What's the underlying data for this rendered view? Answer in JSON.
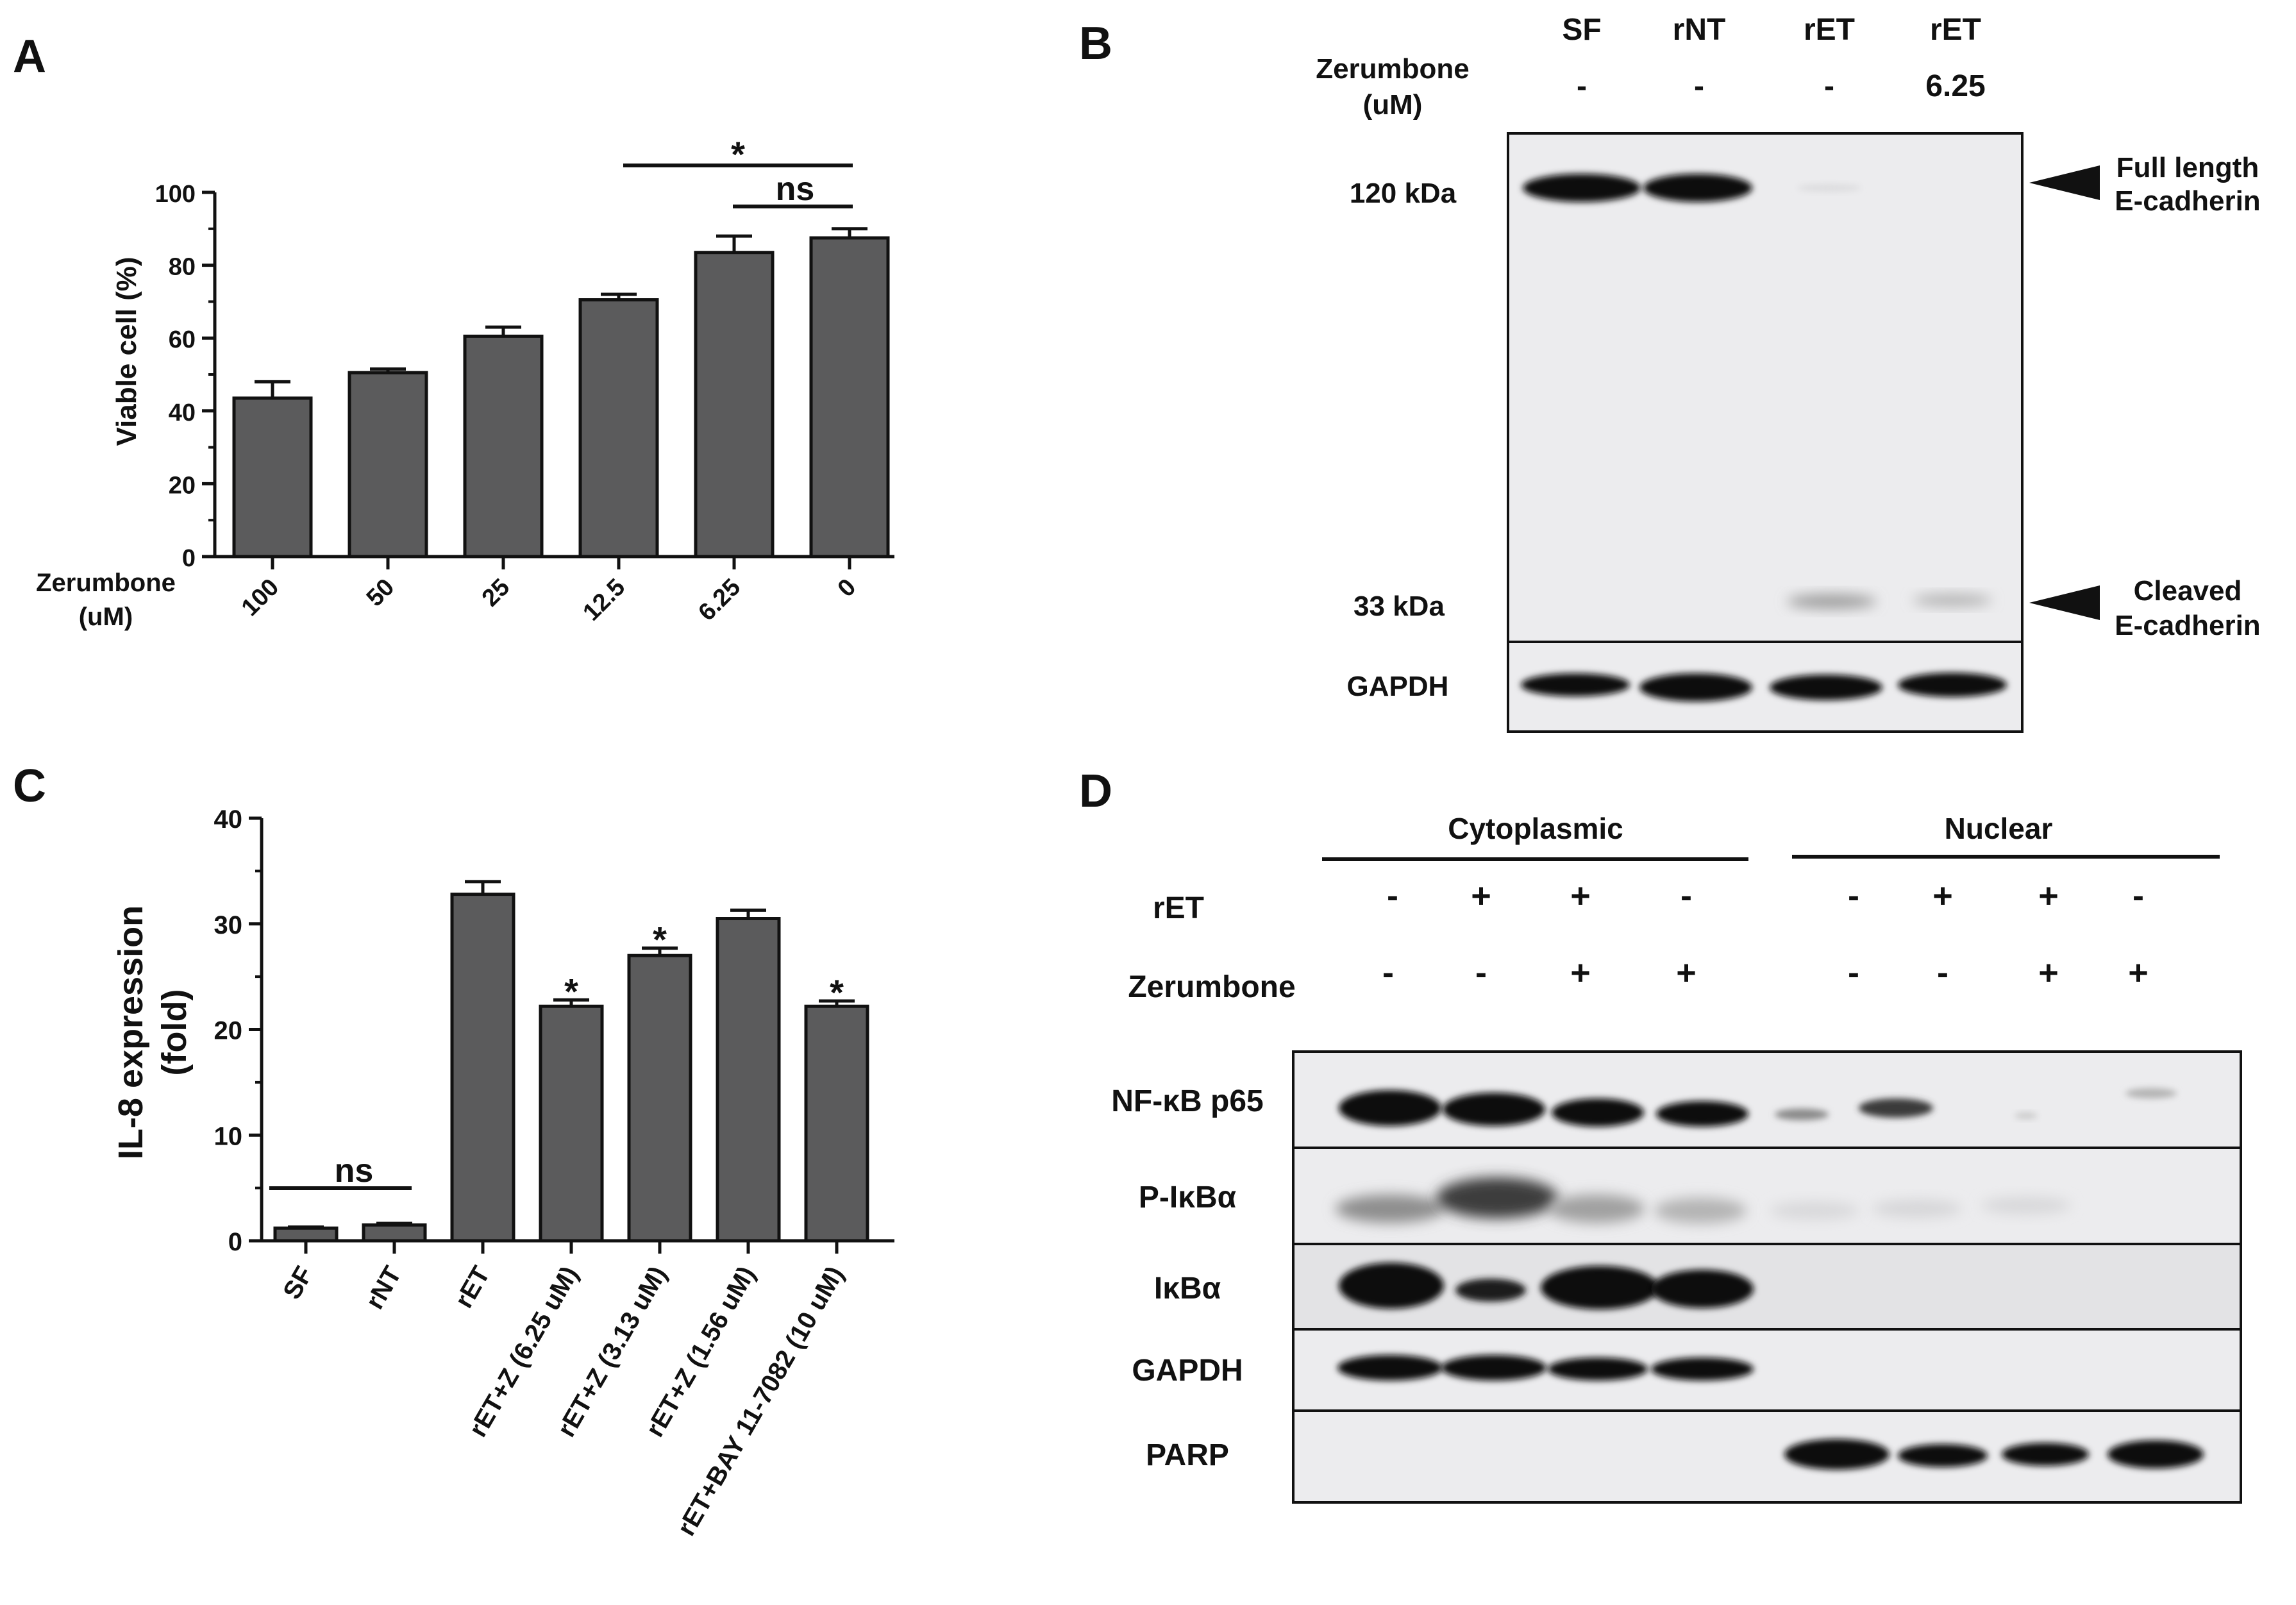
{
  "panels": {
    "A": "A",
    "B": "B",
    "C": "C",
    "D": "D"
  },
  "panelA": {
    "ylabel": "Viable cell (%)",
    "xaxis_title_line1": "Zerumbone",
    "xaxis_title_line2": "(uM)",
    "sig_star": "*",
    "sig_ns": "ns"
  },
  "panelB": {
    "header": [
      "SF",
      "rNT",
      "rET",
      "rET"
    ],
    "zerumbone_label_line1": "Zerumbone",
    "zerumbone_label_line2": "(uM)",
    "zerumbone_values": [
      "-",
      "-",
      "-",
      "6.25"
    ],
    "mw_high": "120 kDa",
    "mw_low": "33 kDa",
    "gapdh": "GAPDH",
    "arrow_top_line1": "Full length",
    "arrow_top_line2": "E-cadherin",
    "arrow_bottom_line1": "Cleaved",
    "arrow_bottom_line2": "E-cadherin"
  },
  "panelC": {
    "ylabel_line1": "IL-8 expression",
    "ylabel_line2": "(fold)",
    "sig_ns": "ns",
    "sig_star": "*"
  },
  "panelD": {
    "group_cyto": "Cytoplasmic",
    "group_nuc": "Nuclear",
    "row_ret": "rET",
    "row_zer": "Zerumbone",
    "ret_signs": [
      "-",
      "+",
      "+",
      "-",
      "-",
      "+",
      "+",
      "-"
    ],
    "zer_signs": [
      "-",
      "-",
      "+",
      "+",
      "-",
      "-",
      "+",
      "+"
    ],
    "blot_labels": [
      "NF-κB p65",
      "P-IκBα",
      "IκBα",
      "GAPDH",
      "PARP"
    ]
  },
  "chart_data": [
    {
      "type": "bar",
      "panel": "A",
      "categories": [
        "100",
        "50",
        "25",
        "12.5",
        "6.25",
        "0"
      ],
      "values": [
        43.5,
        50.5,
        60.5,
        70.5,
        83.5,
        87.5
      ],
      "errors": [
        4.5,
        1,
        2.5,
        1.5,
        4.5,
        2.5
      ],
      "ylabel": "Viable cell (%)",
      "xlabel": "Zerumbone (uM)",
      "ylim": [
        0,
        100
      ],
      "yticks": [
        0,
        20,
        40,
        60,
        80,
        100
      ],
      "annotations": [
        {
          "text": "*",
          "from": "12.5",
          "to": "0"
        },
        {
          "text": "ns",
          "from": "6.25",
          "to": "0"
        }
      ]
    },
    {
      "type": "bar",
      "panel": "C",
      "categories": [
        "SF",
        "rNT",
        "rET",
        "rET+Z (6.25 uM)",
        "rET+Z (3.13 uM)",
        "rET+Z (1.56 uM)",
        "rET+BAY 11-7082 (10 uM)"
      ],
      "values": [
        1.2,
        1.5,
        32.8,
        22.2,
        27.0,
        30.5,
        22.2
      ],
      "errors": [
        0.1,
        0.15,
        1.2,
        0.6,
        0.7,
        0.8,
        0.5
      ],
      "markers": [
        "",
        "",
        "",
        "*",
        "*",
        "",
        "*"
      ],
      "ylabel": "IL-8 expression (fold)",
      "ylim": [
        0,
        40
      ],
      "yticks": [
        0,
        10,
        20,
        30,
        40
      ],
      "annotations": [
        {
          "text": "ns",
          "from": "SF",
          "to": "rNT"
        }
      ]
    }
  ]
}
